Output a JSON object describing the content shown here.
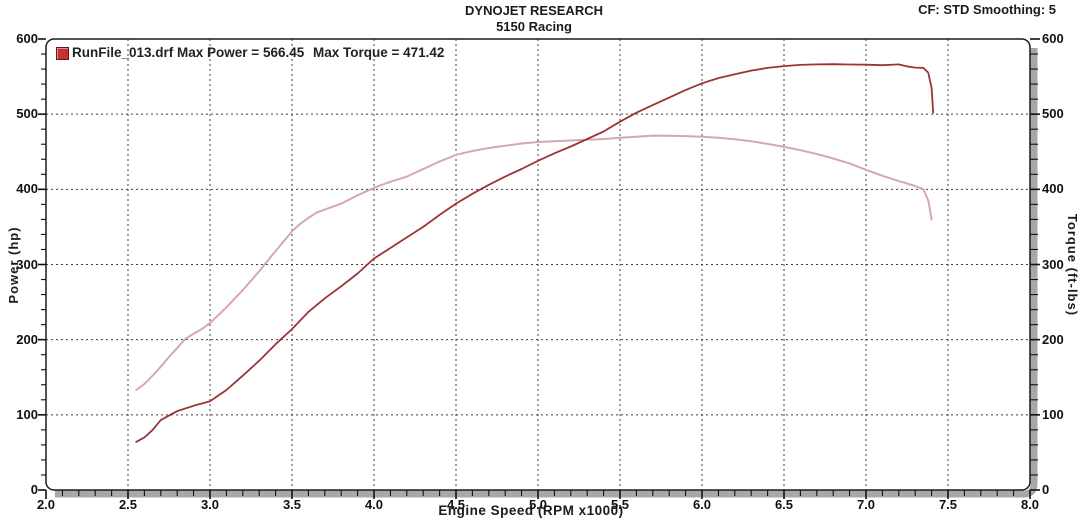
{
  "header": {
    "title": "DYNOJET RESEARCH",
    "subtitle": "5150 Racing",
    "correction": "CF: STD  Smoothing: 5"
  },
  "legend": {
    "marker_icon": "run-file-marker",
    "power_label": "RunFile_013.drf Max Power = 566.45",
    "torque_label": "Max Torque = 471.42"
  },
  "axes": {
    "x": {
      "title": "Engine Speed (RPM x1000)",
      "min": 2.0,
      "max": 8.0,
      "major_step": 0.5,
      "minor_step": 0.1,
      "tick_labels": [
        "2.0",
        "2.5",
        "3.0",
        "3.5",
        "4.0",
        "4.5",
        "5.0",
        "5.5",
        "6.0",
        "6.5",
        "7.0",
        "7.5",
        "8.0"
      ]
    },
    "y_left": {
      "title": "Power (hp)",
      "min": 0,
      "max": 600,
      "major_step": 100,
      "minor_step": 20,
      "tick_labels": [
        "600",
        "500",
        "400",
        "300",
        "200",
        "100",
        "0"
      ]
    },
    "y_right": {
      "title": "Torque (ft-lbs)",
      "min": 0,
      "max": 600,
      "major_step": 100,
      "minor_step": 20,
      "tick_labels": [
        "600",
        "500",
        "400",
        "300",
        "200",
        "100",
        "0"
      ]
    }
  },
  "colors": {
    "power_curve": "#9d3434",
    "torque_curve": "#d5a9a9",
    "frame": "#1c1c1c",
    "grid": "#3f3f3f",
    "shadow_band": "#a8a8a8",
    "legend_marker": "#c43232",
    "text": "#1b1b1b"
  },
  "chart_data": {
    "type": "line",
    "title": "DYNOJET RESEARCH - 5150 Racing",
    "xlabel": "Engine Speed (RPM x1000)",
    "ylabel_left": "Power (hp)",
    "ylabel_right": "Torque (ft-lbs)",
    "xlim": [
      2.0,
      8.0
    ],
    "ylim": [
      0,
      600
    ],
    "grid": "dashed at major ticks",
    "legend_position": "top-left inside plot",
    "series": [
      {
        "name": "Power",
        "unit": "hp",
        "max": 566.45,
        "color": "#9d3434",
        "points": [
          [
            2.55,
            64
          ],
          [
            2.6,
            70
          ],
          [
            2.65,
            80
          ],
          [
            2.7,
            93
          ],
          [
            2.8,
            105
          ],
          [
            2.9,
            112
          ],
          [
            3.0,
            118
          ],
          [
            3.1,
            133
          ],
          [
            3.2,
            152
          ],
          [
            3.3,
            172
          ],
          [
            3.4,
            194
          ],
          [
            3.5,
            214
          ],
          [
            3.6,
            237
          ],
          [
            3.7,
            255
          ],
          [
            3.8,
            271
          ],
          [
            3.9,
            288
          ],
          [
            4.0,
            308
          ],
          [
            4.1,
            322
          ],
          [
            4.2,
            336
          ],
          [
            4.3,
            350
          ],
          [
            4.4,
            366
          ],
          [
            4.5,
            381
          ],
          [
            4.6,
            394
          ],
          [
            4.7,
            406
          ],
          [
            4.8,
            417
          ],
          [
            4.9,
            427
          ],
          [
            5.0,
            438
          ],
          [
            5.1,
            448
          ],
          [
            5.2,
            457
          ],
          [
            5.3,
            467
          ],
          [
            5.4,
            477
          ],
          [
            5.5,
            490
          ],
          [
            5.6,
            502
          ],
          [
            5.7,
            512
          ],
          [
            5.8,
            522
          ],
          [
            5.9,
            532
          ],
          [
            6.0,
            541
          ],
          [
            6.1,
            548
          ],
          [
            6.2,
            553
          ],
          [
            6.3,
            558
          ],
          [
            6.4,
            561.5
          ],
          [
            6.5,
            564
          ],
          [
            6.6,
            565.5
          ],
          [
            6.7,
            566.2
          ],
          [
            6.8,
            566.45
          ],
          [
            6.9,
            566.1
          ],
          [
            7.0,
            565.8
          ],
          [
            7.1,
            565.2
          ],
          [
            7.2,
            566.2
          ],
          [
            7.25,
            563.5
          ],
          [
            7.3,
            562
          ],
          [
            7.35,
            561.5
          ],
          [
            7.38,
            555
          ],
          [
            7.4,
            535
          ],
          [
            7.41,
            502
          ]
        ]
      },
      {
        "name": "Torque",
        "unit": "ft-lbs",
        "max": 471.42,
        "color": "#d5a9a9",
        "points": [
          [
            2.55,
            133
          ],
          [
            2.6,
            141
          ],
          [
            2.65,
            152
          ],
          [
            2.7,
            164
          ],
          [
            2.75,
            177
          ],
          [
            2.8,
            189
          ],
          [
            2.85,
            201
          ],
          [
            2.9,
            208
          ],
          [
            2.95,
            214
          ],
          [
            3.0,
            222
          ],
          [
            3.1,
            243
          ],
          [
            3.2,
            266
          ],
          [
            3.3,
            291
          ],
          [
            3.4,
            318
          ],
          [
            3.45,
            331
          ],
          [
            3.5,
            344
          ],
          [
            3.55,
            354
          ],
          [
            3.6,
            362
          ],
          [
            3.65,
            369
          ],
          [
            3.7,
            373
          ],
          [
            3.8,
            381
          ],
          [
            3.9,
            392
          ],
          [
            4.0,
            402
          ],
          [
            4.1,
            410
          ],
          [
            4.2,
            417
          ],
          [
            4.3,
            427
          ],
          [
            4.4,
            437
          ],
          [
            4.5,
            446
          ],
          [
            4.6,
            451
          ],
          [
            4.7,
            455
          ],
          [
            4.8,
            458
          ],
          [
            4.9,
            461
          ],
          [
            5.0,
            463
          ],
          [
            5.1,
            464
          ],
          [
            5.2,
            465
          ],
          [
            5.3,
            466
          ],
          [
            5.4,
            467
          ],
          [
            5.5,
            468.5
          ],
          [
            5.6,
            470
          ],
          [
            5.7,
            471.42
          ],
          [
            5.8,
            471.2
          ],
          [
            5.9,
            470.8
          ],
          [
            6.0,
            470
          ],
          [
            6.1,
            468.5
          ],
          [
            6.2,
            466.5
          ],
          [
            6.3,
            464
          ],
          [
            6.4,
            460.5
          ],
          [
            6.5,
            456.5
          ],
          [
            6.6,
            452
          ],
          [
            6.7,
            447
          ],
          [
            6.8,
            441
          ],
          [
            6.9,
            434.5
          ],
          [
            7.0,
            426
          ],
          [
            7.1,
            418
          ],
          [
            7.2,
            411
          ],
          [
            7.3,
            404.5
          ],
          [
            7.35,
            400
          ],
          [
            7.38,
            385
          ],
          [
            7.4,
            360
          ]
        ]
      }
    ]
  }
}
